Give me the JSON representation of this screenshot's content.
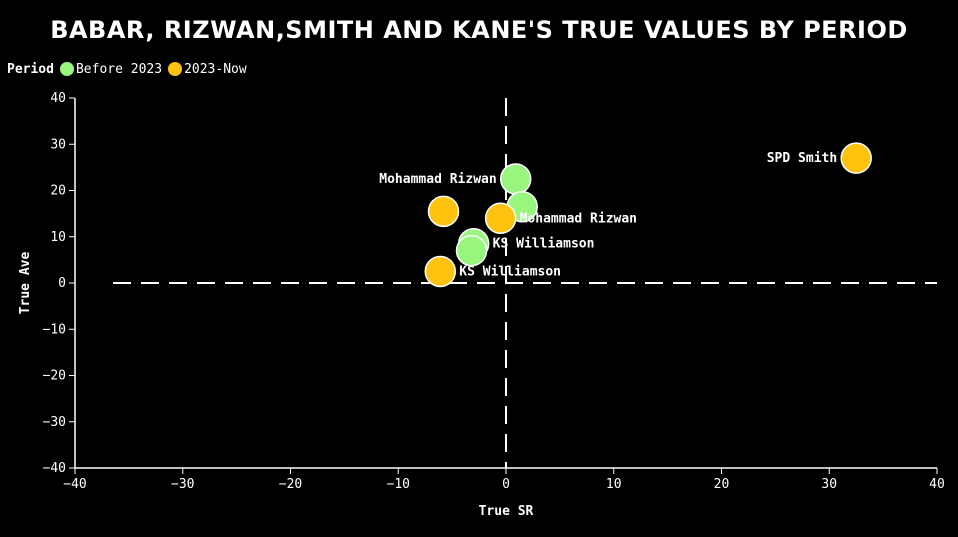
{
  "chart_data": {
    "type": "scatter",
    "title": "BABAR, RIZWAN,SMITH AND KANE'S TRUE VALUES BY PERIOD",
    "xlabel": "True SR",
    "ylabel": "True Ave",
    "xlim": [
      -40,
      40
    ],
    "ylim": [
      -40,
      40
    ],
    "xticks": [
      -40,
      -30,
      -20,
      -10,
      0,
      10,
      20,
      30,
      40
    ],
    "yticks": [
      -40,
      -30,
      -20,
      -10,
      0,
      10,
      20,
      30,
      40
    ],
    "grid": false,
    "reference_lines": [
      "x = 0 dashed",
      "y = 0 dashed"
    ],
    "legend": {
      "title": "Period",
      "placement": "top-left",
      "items": [
        {
          "label": "Before 2023",
          "color": "#98f57e"
        },
        {
          "label": "2023-Now",
          "color": "#ffc20e"
        }
      ]
    },
    "series": [
      {
        "name": "Before 2023",
        "color": "#98f57e",
        "points": [
          {
            "x": 0.9,
            "y": 22.5,
            "label": "Mohammad Rizwan",
            "label_side": "left"
          },
          {
            "x": 1.5,
            "y": 16.5,
            "label": "",
            "label_side": "right"
          },
          {
            "x": -3.0,
            "y": 8.5,
            "label": "KS Williamson",
            "label_side": "right"
          },
          {
            "x": -3.2,
            "y": 7.0,
            "label": "",
            "label_side": "right"
          }
        ]
      },
      {
        "name": "2023-Now",
        "color": "#ffc20e",
        "points": [
          {
            "x": 32.5,
            "y": 27.0,
            "label": "SPD Smith",
            "label_side": "left"
          },
          {
            "x": -5.8,
            "y": 15.5,
            "label": "",
            "label_side": "right"
          },
          {
            "x": -0.5,
            "y": 14.0,
            "label": "Mohammad Rizwan",
            "label_side": "right"
          },
          {
            "x": -6.1,
            "y": 2.5,
            "label": "KS Williamson",
            "label_side": "right"
          }
        ]
      }
    ]
  }
}
